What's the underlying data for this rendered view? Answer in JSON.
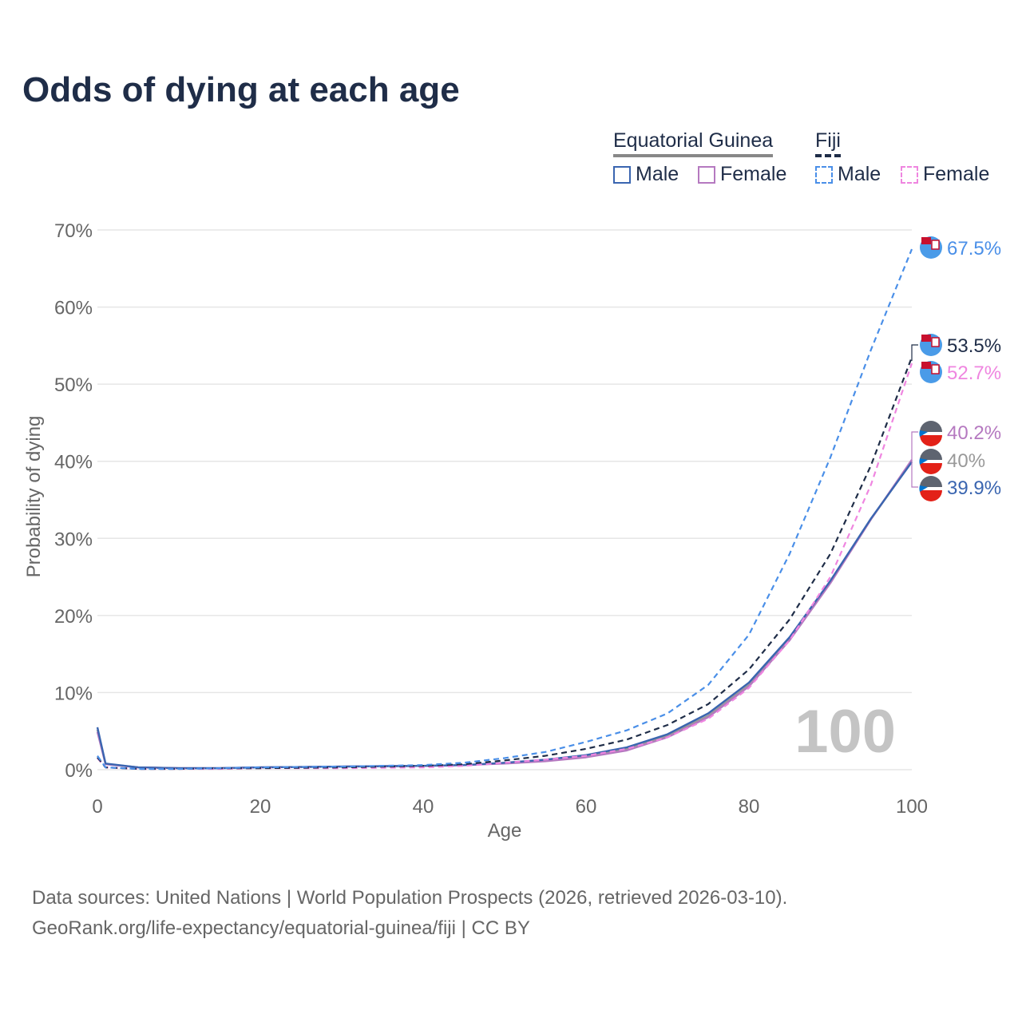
{
  "title": "Odds of dying at each age",
  "legend": {
    "group1": "Equatorial Guinea",
    "group2": "Fiji",
    "items": [
      {
        "label": "Male",
        "color": "#3a65b0",
        "dashed": false
      },
      {
        "label": "Female",
        "color": "#b579c0",
        "dashed": false
      },
      {
        "label": "Male",
        "color": "#4a8fe8",
        "dashed": true
      },
      {
        "label": "Female",
        "color": "#ef86e0",
        "dashed": true
      }
    ]
  },
  "chart_data": {
    "type": "line",
    "xlabel": "Age",
    "ylabel": "Probability of dying",
    "xlim": [
      0,
      100
    ],
    "ylim": [
      0,
      70
    ],
    "x_ticks": [
      "0",
      "20",
      "40",
      "60",
      "80",
      "100"
    ],
    "y_ticks": [
      "0%",
      "10%",
      "20%",
      "30%",
      "40%",
      "50%",
      "60%",
      "70%"
    ],
    "annotation": "100",
    "x": [
      0,
      1,
      5,
      10,
      15,
      20,
      30,
      40,
      45,
      50,
      55,
      60,
      65,
      70,
      75,
      80,
      85,
      90,
      95,
      100
    ],
    "series": [
      {
        "name": "Equatorial Guinea Male",
        "color": "#3a65b0",
        "dashed": false,
        "values": [
          5.5,
          0.8,
          0.3,
          0.2,
          0.2,
          0.3,
          0.4,
          0.5,
          0.6,
          0.9,
          1.3,
          1.9,
          2.9,
          4.6,
          7.3,
          11.3,
          17.2,
          24.5,
          32.6,
          39.9
        ],
        "end_label": "39.9%"
      },
      {
        "name": "Equatorial Guinea Female",
        "color": "#b579c0",
        "dashed": false,
        "values": [
          4.9,
          0.7,
          0.3,
          0.2,
          0.2,
          0.3,
          0.4,
          0.5,
          0.6,
          0.8,
          1.1,
          1.6,
          2.5,
          4.2,
          6.8,
          10.8,
          16.8,
          24.2,
          32.5,
          40.2
        ],
        "end_label": "40.2%"
      },
      {
        "name": "Equatorial Guinea Total",
        "color": "#999999",
        "dashed": false,
        "values": [
          5.2,
          0.75,
          0.3,
          0.2,
          0.2,
          0.3,
          0.4,
          0.5,
          0.6,
          0.85,
          1.2,
          1.75,
          2.7,
          4.4,
          7.0,
          11.0,
          17.0,
          24.3,
          32.5,
          40.0
        ],
        "end_label": "40%"
      },
      {
        "name": "Fiji Male",
        "color": "#4a8fe8",
        "dashed": true,
        "values": [
          1.8,
          0.3,
          0.1,
          0.1,
          0.2,
          0.3,
          0.4,
          0.6,
          0.9,
          1.5,
          2.3,
          3.6,
          5.1,
          7.3,
          11.0,
          17.5,
          28.0,
          40.5,
          54.5,
          67.5
        ],
        "end_label": "67.5%"
      },
      {
        "name": "Fiji Total",
        "color": "#1f2d48",
        "dashed": true,
        "values": [
          1.6,
          0.3,
          0.1,
          0.1,
          0.2,
          0.2,
          0.3,
          0.5,
          0.7,
          1.2,
          1.8,
          2.7,
          3.9,
          5.8,
          8.5,
          13.0,
          19.5,
          28.0,
          39.5,
          53.5
        ],
        "end_label": "53.5%"
      },
      {
        "name": "Fiji Female",
        "color": "#ef86e0",
        "dashed": true,
        "values": [
          1.5,
          0.3,
          0.1,
          0.1,
          0.1,
          0.2,
          0.2,
          0.3,
          0.5,
          0.9,
          1.3,
          1.8,
          2.7,
          4.2,
          6.6,
          10.6,
          16.8,
          25.0,
          37.0,
          52.7
        ],
        "end_label": "52.7%"
      }
    ]
  },
  "sources": {
    "line1": "Data sources: United Nations | World Population Prospects (2026, retrieved 2026-03-10).",
    "line2": "GeoRank.org/life-expectancy/equatorial-guinea/fiji | CC BY"
  }
}
